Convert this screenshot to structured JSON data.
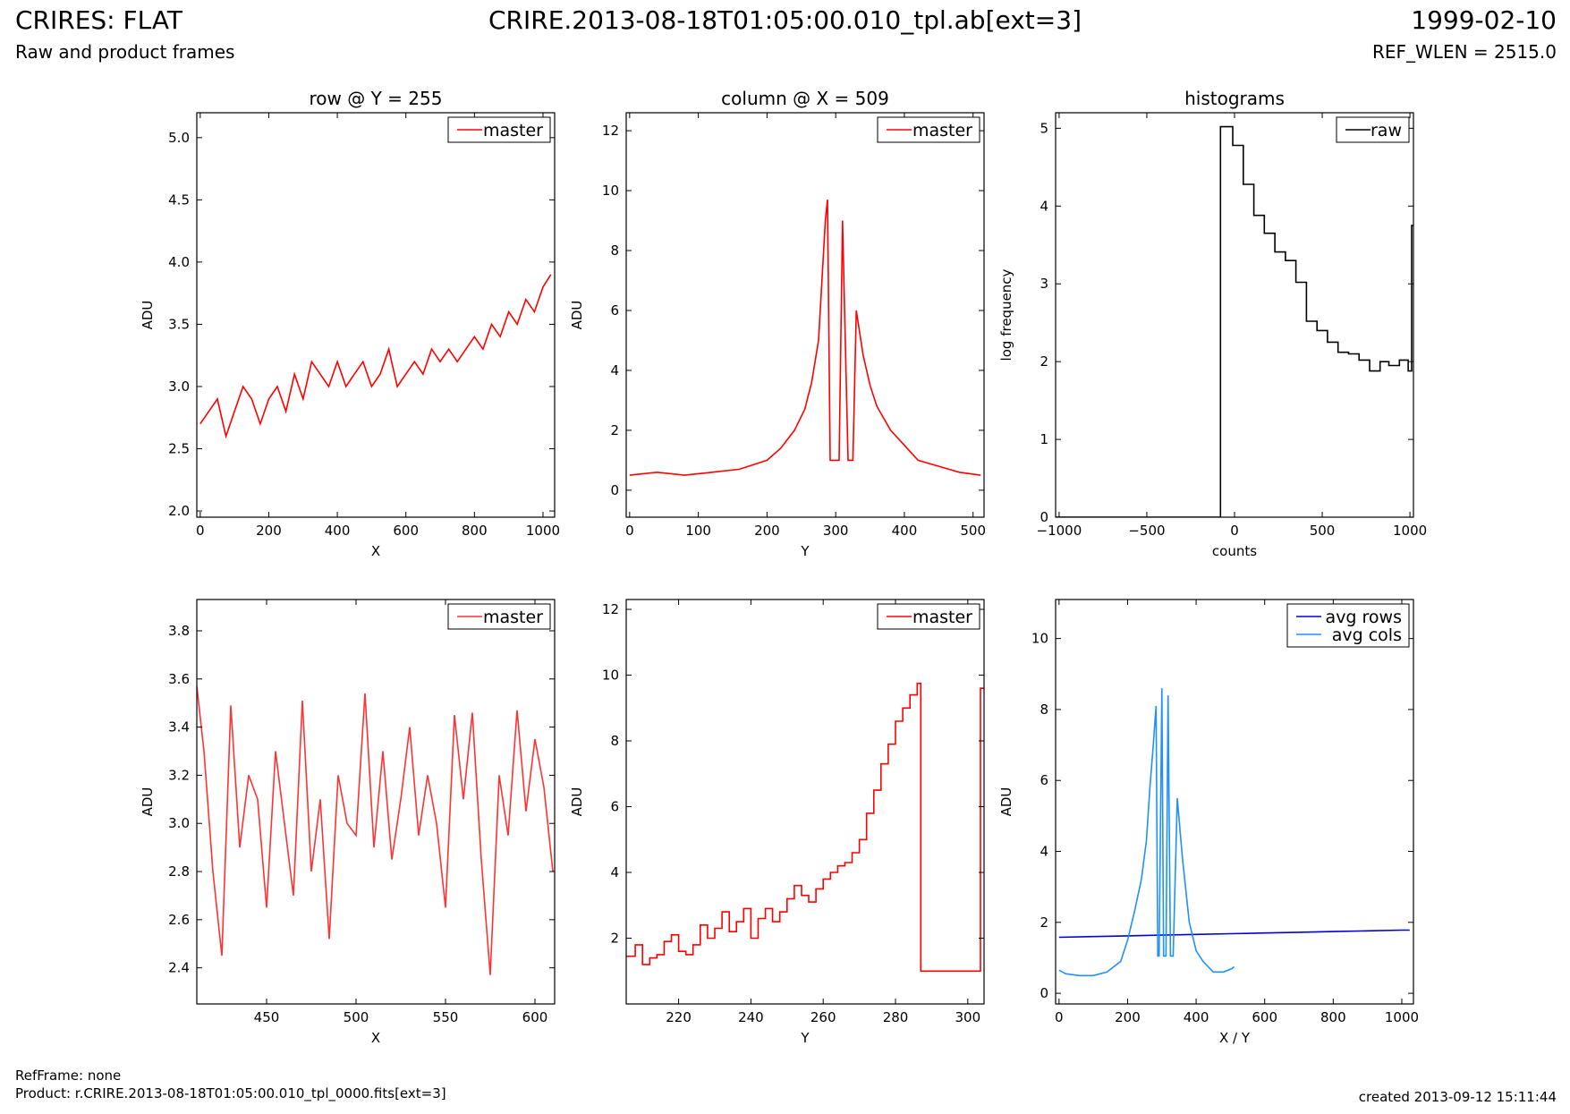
{
  "header": {
    "title": "CRIRES: FLAT",
    "subtitle": "Raw and product frames",
    "file": "CRIRE.2013-08-18T01:05:00.010_tpl.ab[ext=3]",
    "date": "1999-02-10",
    "ref_wlen": "REF_WLEN = 2515.0"
  },
  "footer": {
    "ref_frame": "RefFrame: none",
    "product": "Product: r.CRIRE.2013-08-18T01:05:00.010_tpl_0000.fits[ext=3]",
    "created": "created 2013-09-12 15:11:44"
  },
  "chart_data": [
    {
      "type": "line",
      "title": "row @ Y = 255",
      "xlabel": "X",
      "ylabel": "ADU",
      "xlim": [
        -10,
        1034
      ],
      "ylim": [
        1.95,
        5.2
      ],
      "xticks": [
        0,
        200,
        400,
        600,
        800,
        1000
      ],
      "xtick_labels": [
        "0",
        "200",
        "400",
        "600",
        "800",
        "1000"
      ],
      "yticks": [
        2.0,
        2.5,
        3.0,
        3.5,
        4.0,
        4.5,
        5.0
      ],
      "ytick_labels": [
        "2.0",
        "2.5",
        "3.0",
        "3.5",
        "4.0",
        "4.5",
        "5.0"
      ],
      "legend": "top-right",
      "series": [
        {
          "name": "master",
          "color": "#ff0000",
          "x": [
            0,
            25,
            50,
            75,
            100,
            125,
            150,
            175,
            200,
            225,
            250,
            275,
            300,
            325,
            350,
            375,
            400,
            425,
            450,
            475,
            500,
            525,
            550,
            575,
            600,
            625,
            650,
            675,
            700,
            725,
            750,
            775,
            800,
            825,
            850,
            875,
            900,
            925,
            950,
            975,
            1000,
            1023
          ],
          "y": [
            2.7,
            2.8,
            2.9,
            2.6,
            2.8,
            3.0,
            2.9,
            2.7,
            2.9,
            3.0,
            2.8,
            3.1,
            2.9,
            3.2,
            3.1,
            3.0,
            3.2,
            3.0,
            3.1,
            3.2,
            3.0,
            3.1,
            3.3,
            3.0,
            3.1,
            3.2,
            3.1,
            3.3,
            3.2,
            3.3,
            3.2,
            3.3,
            3.4,
            3.3,
            3.5,
            3.4,
            3.6,
            3.5,
            3.7,
            3.6,
            3.8,
            3.9
          ]
        }
      ]
    },
    {
      "type": "line",
      "title": "column @ X = 509",
      "xlabel": "Y",
      "ylabel": "ADU",
      "xlim": [
        -5,
        516
      ],
      "ylim": [
        -0.9,
        12.6
      ],
      "xticks": [
        0,
        100,
        200,
        300,
        400,
        500
      ],
      "xtick_labels": [
        "0",
        "100",
        "200",
        "300",
        "400",
        "500"
      ],
      "yticks": [
        0,
        2,
        4,
        6,
        8,
        10,
        12
      ],
      "ytick_labels": [
        "0",
        "2",
        "4",
        "6",
        "8",
        "10",
        "12"
      ],
      "legend": "top-right",
      "series": [
        {
          "name": "master",
          "color": "#ff0000",
          "x": [
            0,
            40,
            80,
            120,
            160,
            200,
            220,
            240,
            255,
            265,
            275,
            280,
            285,
            288,
            292,
            305,
            310,
            318,
            325,
            330,
            340,
            350,
            360,
            380,
            400,
            420,
            450,
            480,
            511
          ],
          "y": [
            0.5,
            0.6,
            0.5,
            0.6,
            0.7,
            1.0,
            1.4,
            2.0,
            2.7,
            3.6,
            5.0,
            7.0,
            9.0,
            9.7,
            1.0,
            1.0,
            9.0,
            1.0,
            1.0,
            6.0,
            4.5,
            3.5,
            2.8,
            2.0,
            1.5,
            1.0,
            0.8,
            0.6,
            0.5
          ]
        }
      ]
    },
    {
      "type": "line",
      "title": "histograms",
      "xlabel": "counts",
      "ylabel": "log frequency",
      "xlim": [
        -1020,
        1020
      ],
      "ylim": [
        0,
        5.2
      ],
      "xticks": [
        -1000,
        -500,
        0,
        500,
        1000
      ],
      "xtick_labels": [
        "−1000",
        "−500",
        "0",
        "500",
        "1000"
      ],
      "yticks": [
        0,
        1,
        2,
        3,
        4,
        5
      ],
      "ytick_labels": [
        "0",
        "1",
        "2",
        "3",
        "4",
        "5"
      ],
      "legend": "top-right",
      "series": [
        {
          "name": "raw",
          "color": "#000000",
          "step": true,
          "x": [
            -1020,
            -80,
            -80,
            -10,
            50,
            110,
            170,
            230,
            290,
            350,
            410,
            470,
            530,
            590,
            650,
            710,
            770,
            830,
            880,
            940,
            990,
            1010,
            1020
          ],
          "y": [
            0,
            0,
            5.02,
            4.78,
            4.28,
            3.88,
            3.65,
            3.41,
            3.3,
            3.02,
            2.52,
            2.4,
            2.25,
            2.12,
            2.1,
            2.02,
            1.88,
            2.0,
            1.95,
            2.02,
            1.88,
            3.75,
            3.75
          ]
        }
      ]
    },
    {
      "type": "line",
      "title": "",
      "xlabel": "X",
      "ylabel": "ADU",
      "xlim": [
        411,
        611
      ],
      "ylim": [
        2.25,
        3.93
      ],
      "xticks": [
        450,
        500,
        550,
        600
      ],
      "xtick_labels": [
        "450",
        "500",
        "550",
        "600"
      ],
      "yticks": [
        2.4,
        2.6,
        2.8,
        3.0,
        3.2,
        3.4,
        3.6,
        3.8
      ],
      "ytick_labels": [
        "2.4",
        "2.6",
        "2.8",
        "3.0",
        "3.2",
        "3.4",
        "3.6",
        "3.8"
      ],
      "legend": "top-right",
      "series": [
        {
          "name": "master",
          "color": "#ff3333",
          "x": [
            411,
            415,
            420,
            425,
            430,
            435,
            440,
            445,
            450,
            455,
            460,
            465,
            470,
            475,
            480,
            485,
            490,
            495,
            500,
            505,
            510,
            515,
            520,
            525,
            530,
            535,
            540,
            545,
            550,
            555,
            560,
            565,
            570,
            575,
            580,
            585,
            590,
            595,
            600,
            605,
            610
          ],
          "y": [
            3.57,
            3.3,
            2.8,
            2.45,
            3.49,
            2.9,
            3.2,
            3.1,
            2.65,
            3.3,
            3.0,
            2.7,
            3.51,
            2.8,
            3.1,
            2.52,
            3.2,
            3.0,
            2.95,
            3.54,
            2.9,
            3.3,
            2.85,
            3.1,
            3.4,
            2.95,
            3.2,
            3.0,
            2.65,
            3.45,
            3.1,
            3.46,
            2.85,
            2.37,
            3.2,
            2.95,
            3.47,
            3.05,
            3.35,
            3.15,
            2.8
          ]
        }
      ]
    },
    {
      "type": "line",
      "title": "",
      "xlabel": "Y",
      "ylabel": "ADU",
      "xlim": [
        205.5,
        304.5
      ],
      "ylim": [
        0,
        12.3
      ],
      "xticks": [
        220,
        240,
        260,
        280,
        300
      ],
      "xtick_labels": [
        "220",
        "240",
        "260",
        "280",
        "300"
      ],
      "yticks": [
        2,
        4,
        6,
        8,
        10,
        12
      ],
      "ytick_labels": [
        "2",
        "4",
        "6",
        "8",
        "10",
        "12"
      ],
      "legend": "top-right",
      "series": [
        {
          "name": "master",
          "color": "#ff0000",
          "step": true,
          "x": [
            205.5,
            208,
            210,
            212,
            214,
            216,
            218,
            220,
            222,
            224,
            226,
            228,
            230,
            232,
            234,
            236,
            238,
            240,
            242,
            244,
            246,
            248,
            250,
            252,
            254,
            256,
            258,
            260,
            262,
            264,
            266,
            268,
            270,
            272,
            274,
            276,
            278,
            280,
            282,
            284,
            286,
            287,
            287,
            290,
            295,
            300,
            303.5,
            303.5,
            304.5
          ],
          "y": [
            1.45,
            1.8,
            1.2,
            1.4,
            1.5,
            1.9,
            2.1,
            1.6,
            1.5,
            1.8,
            2.4,
            2.0,
            2.3,
            2.8,
            2.2,
            2.5,
            2.9,
            2.0,
            2.6,
            2.9,
            2.5,
            2.8,
            3.2,
            3.6,
            3.3,
            3.1,
            3.5,
            3.8,
            4.0,
            4.2,
            4.3,
            4.6,
            5.0,
            5.8,
            6.5,
            7.3,
            7.9,
            8.6,
            9.0,
            9.4,
            9.75,
            9.75,
            1.0,
            1.0,
            1.0,
            1.0,
            1.0,
            9.6,
            9.6
          ]
        }
      ]
    },
    {
      "type": "line",
      "title": "",
      "xlabel": "X / Y",
      "ylabel": "ADU",
      "xlim": [
        -10,
        1034
      ],
      "ylim": [
        -0.3,
        11.1
      ],
      "xticks": [
        0,
        200,
        400,
        600,
        800,
        1000
      ],
      "xtick_labels": [
        "0",
        "200",
        "400",
        "600",
        "800",
        "1000"
      ],
      "yticks": [
        0,
        2,
        4,
        6,
        8,
        10
      ],
      "ytick_labels": [
        "0",
        "2",
        "4",
        "6",
        "8",
        "10"
      ],
      "legend": "top-right",
      "series": [
        {
          "name": "avg rows",
          "color": "#0000dd",
          "x": [
            0,
            100,
            200,
            300,
            400,
            500,
            600,
            700,
            800,
            900,
            1000,
            1023
          ],
          "y": [
            1.58,
            1.6,
            1.62,
            1.64,
            1.66,
            1.68,
            1.7,
            1.72,
            1.74,
            1.76,
            1.78,
            1.78
          ]
        },
        {
          "name": "avg cols",
          "color": "#1e90ff",
          "x": [
            0,
            20,
            60,
            100,
            140,
            180,
            200,
            220,
            240,
            255,
            265,
            275,
            283,
            288,
            292,
            300,
            305,
            312,
            318,
            325,
            333,
            345,
            360,
            380,
            400,
            420,
            450,
            480,
            505,
            511
          ],
          "y": [
            0.65,
            0.55,
            0.5,
            0.5,
            0.6,
            0.9,
            1.5,
            2.3,
            3.2,
            4.3,
            5.8,
            7.0,
            8.1,
            1.05,
            1.05,
            8.6,
            1.05,
            1.05,
            8.4,
            1.05,
            1.05,
            5.5,
            3.8,
            2.0,
            1.2,
            0.9,
            0.6,
            0.6,
            0.7,
            0.75
          ]
        }
      ]
    }
  ]
}
